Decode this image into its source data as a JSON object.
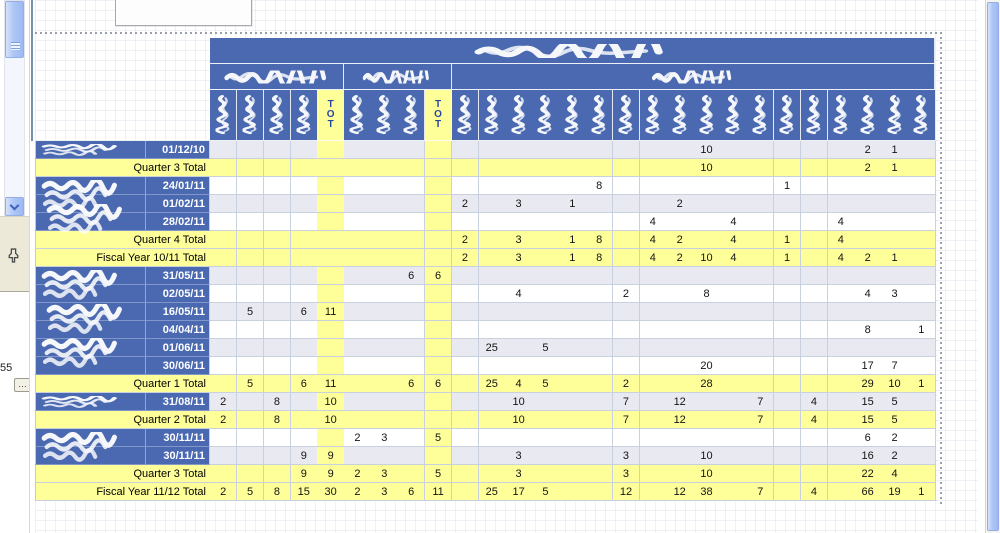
{
  "colors": {
    "header_blue": "#4a69b1",
    "total_yellow": "#ffff99",
    "alt_row": "#e9e9f1",
    "line": "#c9d0de"
  },
  "dock": {
    "value": "55",
    "more": "…"
  },
  "report": {
    "title_redacted": true,
    "tot_label": "TOT",
    "groups": [
      {
        "cols": 4,
        "total": true,
        "label_redacted": true
      },
      {
        "cols": 3,
        "total": true,
        "label_redacted": true
      },
      {
        "cols": 18,
        "total": false,
        "label_redacted": true
      }
    ],
    "rows": [
      {
        "kind": "data",
        "date": "01/12/10",
        "shade": "alt",
        "nameSpan": 1,
        "values": {
          "g3c10": 10,
          "g3c16": 2,
          "g3c17": 1
        }
      },
      {
        "kind": "total",
        "label": "Quarter 3 Total",
        "values": {
          "g3c10": 10,
          "g3c16": 2,
          "g3c17": 1
        }
      },
      {
        "kind": "data",
        "date": "24/01/11",
        "shade": "plain",
        "nameSpan": 3,
        "values": {
          "g3c6": 8,
          "g3c13": 1
        }
      },
      {
        "kind": "data",
        "date": "01/02/11",
        "shade": "alt",
        "values": {
          "g3c1": 2,
          "g3c3": 3,
          "g3c5": 1,
          "g3c9": 2
        }
      },
      {
        "kind": "data",
        "date": "28/02/11",
        "shade": "plain",
        "values": {
          "g3c8": 4,
          "g3c11": 4,
          "g3c15": 4
        }
      },
      {
        "kind": "total",
        "label": "Quarter 4 Total",
        "values": {
          "g3c1": 2,
          "g3c3": 3,
          "g3c5": 1,
          "g3c6": 8,
          "g3c8": 4,
          "g3c9": 2,
          "g3c11": 4,
          "g3c13": 1,
          "g3c15": 4
        }
      },
      {
        "kind": "total",
        "label": "Fiscal Year 10/11 Total",
        "values": {
          "g3c1": 2,
          "g3c3": 3,
          "g3c5": 1,
          "g3c6": 8,
          "g3c8": 4,
          "g3c9": 2,
          "g3c10": 10,
          "g3c11": 4,
          "g3c13": 1,
          "g3c15": 4,
          "g3c16": 2,
          "g3c17": 1
        }
      },
      {
        "kind": "data",
        "date": "31/05/11",
        "shade": "alt",
        "nameSpan": 6,
        "values": {
          "g2c3": 6,
          "g2t": 6
        }
      },
      {
        "kind": "data",
        "date": "02/05/11",
        "shade": "plain",
        "values": {
          "g3c3": 4,
          "g3c7": 2,
          "g3c10": 8,
          "g3c16": 4,
          "g3c17": 3
        }
      },
      {
        "kind": "data",
        "date": "16/05/11",
        "shade": "alt",
        "values": {
          "g1c2": 5,
          "g1c4": 6,
          "g1t": 11
        }
      },
      {
        "kind": "data",
        "date": "04/04/11",
        "shade": "plain",
        "values": {
          "g3c16": 8,
          "g3c18": 1
        }
      },
      {
        "kind": "data",
        "date": "01/06/11",
        "shade": "alt",
        "values": {
          "g3c2": 25,
          "g3c4": 5
        }
      },
      {
        "kind": "data",
        "date": "30/06/11",
        "shade": "plain",
        "values": {
          "g3c10": 20,
          "g3c16": 17,
          "g3c17": 7
        }
      },
      {
        "kind": "total",
        "label": "Quarter 1 Total",
        "values": {
          "g1c2": 5,
          "g1c4": 6,
          "g1t": 11,
          "g2c3": 6,
          "g2t": 6,
          "g3c2": 25,
          "g3c3": 4,
          "g3c4": 5,
          "g3c7": 2,
          "g3c10": 28,
          "g3c16": 29,
          "g3c17": 10,
          "g3c18": 1
        }
      },
      {
        "kind": "data",
        "date": "31/08/11",
        "shade": "alt",
        "nameSpan": 1,
        "values": {
          "g1c1": 2,
          "g1c3": 8,
          "g1t": 10,
          "g3c3": 10,
          "g3c7": 7,
          "g3c9": 12,
          "g3c12": 7,
          "g3c14": 4,
          "g3c16": 15,
          "g3c17": 5
        }
      },
      {
        "kind": "total",
        "label": "Quarter 2 Total",
        "values": {
          "g1c1": 2,
          "g1c3": 8,
          "g1t": 10,
          "g3c3": 10,
          "g3c7": 7,
          "g3c9": 12,
          "g3c12": 7,
          "g3c14": 4,
          "g3c16": 15,
          "g3c17": 5
        }
      },
      {
        "kind": "data",
        "date": "30/11/11",
        "shade": "plain",
        "nameSpan": 2,
        "values": {
          "g2c1": 2,
          "g2c2": 3,
          "g2t": 5,
          "g3c16": 6,
          "g3c17": 2
        }
      },
      {
        "kind": "data",
        "date": "30/11/11",
        "shade": "alt",
        "values": {
          "g1c4": 9,
          "g1t": 9,
          "g3c3": 3,
          "g3c7": 3,
          "g3c10": 10,
          "g3c16": 16,
          "g3c17": 2
        }
      },
      {
        "kind": "total",
        "label": "Quarter 3 Total",
        "values": {
          "g1c4": 9,
          "g1t": 9,
          "g2c1": 2,
          "g2c2": 3,
          "g2t": 5,
          "g3c3": 3,
          "g3c7": 3,
          "g3c10": 10,
          "g3c16": 22,
          "g3c17": 4
        }
      },
      {
        "kind": "total",
        "label": "Fiscal Year 11/12 Total",
        "values": {
          "g1c1": 2,
          "g1c2": 5,
          "g1c3": 8,
          "g1c4": 15,
          "g1t": 30,
          "g2c1": 2,
          "g2c2": 3,
          "g2c3": 6,
          "g2t": 11,
          "g3c2": 25,
          "g3c3": 17,
          "g3c4": 5,
          "g3c7": 12,
          "g3c9": 12,
          "g3c10": 38,
          "g3c12": 7,
          "g3c14": 4,
          "g3c16": 66,
          "g3c17": 19,
          "g3c18": 1
        }
      }
    ]
  }
}
